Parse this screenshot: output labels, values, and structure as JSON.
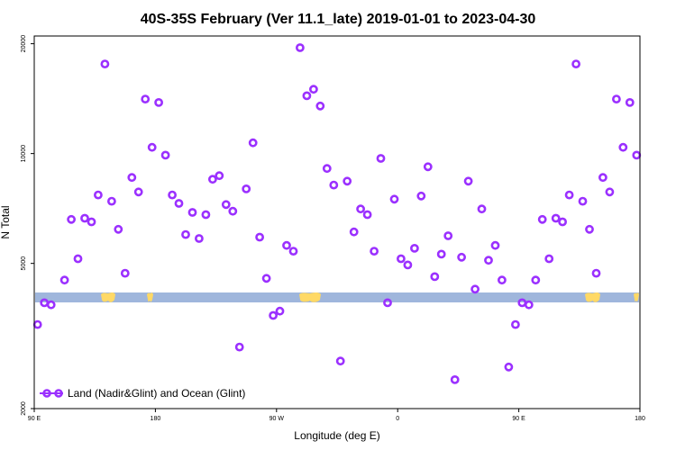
{
  "chart_data": {
    "type": "scatter",
    "title": "40S-35S February (Ver 11.1_late)   2019-01-01 to 2023-04-30",
    "xlabel": "Longitude (deg E)",
    "ylabel": "N Total",
    "y_scale": "log",
    "xlim": [
      90,
      540
    ],
    "ylim": [
      2000,
      21000
    ],
    "x_ticks": [
      {
        "value": 90,
        "label": "90 E"
      },
      {
        "value": 180,
        "label": "180"
      },
      {
        "value": 270,
        "label": "90 W"
      },
      {
        "value": 360,
        "label": "0"
      },
      {
        "value": 450,
        "label": "90 E"
      },
      {
        "value": 540,
        "label": "180"
      }
    ],
    "y_ticks": [
      {
        "value": 2000,
        "label": "2000"
      },
      {
        "value": 5000,
        "label": "5000"
      },
      {
        "value": 10000,
        "label": "10000"
      },
      {
        "value": 20000,
        "label": "20000"
      }
    ],
    "legend": {
      "label": "Land (Nadir&Glint) and Ocean (Glint)",
      "position": "bottom-left"
    },
    "series": [
      {
        "name": "Land (Nadir&Glint) and Ocean (Glint)",
        "color": "#9b30ff",
        "x": [
          92.5,
          97.5,
          102.5,
          112.5,
          117.5,
          122.5,
          127.5,
          132.5,
          137.5,
          142.5,
          147.5,
          152.5,
          157.5,
          162.5,
          167.5,
          172.5,
          177.5,
          182.5,
          187.5,
          192.5,
          197.5,
          202.5,
          207.5,
          212.5,
          217.5,
          222.5,
          227.5,
          232.5,
          237.5,
          242.5,
          247.5,
          252.5,
          257.5,
          262.5,
          267.5,
          272.5,
          277.5,
          282.5,
          287.5,
          292.5,
          297.5,
          302.5,
          307.5,
          312.5,
          317.5,
          322.5,
          327.5,
          332.5,
          337.5,
          342.5,
          347.5,
          352.5,
          357.5,
          362.5,
          367.5,
          372.5,
          377.5,
          382.5,
          387.5,
          392.5,
          397.5,
          402.5,
          407.5,
          412.5,
          417.5,
          422.5,
          427.5,
          432.5,
          437.5,
          442.5,
          447.5,
          452.5,
          457.5,
          462.5,
          467.5,
          472.5,
          477.5,
          482.5,
          487.5,
          492.5,
          497.5,
          502.5,
          507.5,
          512.5,
          517.5,
          522.5,
          527.5,
          532.5,
          537.5
        ],
        "y": [
          3400,
          3900,
          3850,
          4500,
          6600,
          5150,
          6650,
          6500,
          7700,
          17600,
          7400,
          6200,
          4700,
          8600,
          7850,
          14100,
          10400,
          13800,
          9900,
          7700,
          7300,
          6000,
          6900,
          5850,
          6800,
          8500,
          8700,
          7250,
          6950,
          2950,
          8000,
          10700,
          5900,
          4550,
          3600,
          3700,
          5600,
          5400,
          19500,
          14400,
          15000,
          13500,
          9100,
          8200,
          2700,
          8400,
          6100,
          7050,
          6800,
          5400,
          9700,
          3900,
          7500,
          5150,
          4950,
          5500,
          7650,
          9200,
          4600,
          5300,
          5950,
          2400,
          5200,
          8400,
          4250,
          7050,
          5100,
          5600,
          4500,
          2600,
          3400,
          3900,
          3850,
          4500,
          6600,
          5150,
          6650,
          6500,
          7700,
          17600,
          7400,
          6200,
          4700,
          8600,
          7850,
          14100,
          10400,
          13800,
          9900
        ]
      }
    ],
    "land_band_color": "#9fb6dc",
    "land_patch_color": "#ffd966"
  }
}
